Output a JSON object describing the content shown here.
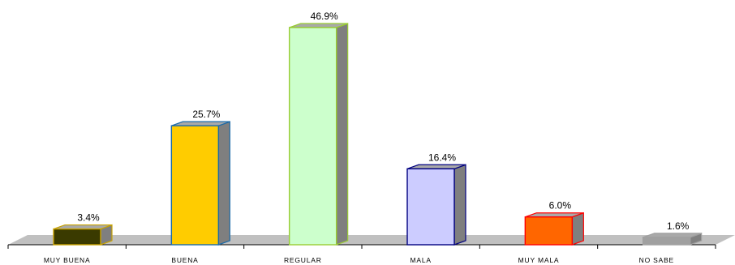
{
  "chart_data": {
    "type": "bar",
    "categories": [
      "MUY BUENA",
      "BUENA",
      "REGULAR",
      "MALA",
      "MUY MALA",
      "NO SABE"
    ],
    "values": [
      3.4,
      25.7,
      46.9,
      16.4,
      6.0,
      1.6
    ],
    "value_labels": [
      "3.4%",
      "25.7%",
      "46.9%",
      "16.4%",
      "6.0%",
      "1.6%"
    ],
    "unit": "%",
    "ylim": [
      0,
      46.9
    ],
    "grid": false,
    "legend": "none",
    "style": "3d",
    "colors": {
      "fronts": [
        "#3a3a00",
        "#ffcc00",
        "#ccffcc",
        "#ccccff",
        "#ff6600",
        "#a0a0a0"
      ],
      "outlines": [
        "#c8a200",
        "#1a6aa8",
        "#99cc33",
        "#000080",
        "#ff0000",
        "#a0a0a0"
      ],
      "side": "#7f7f7f",
      "top": "#a9a9a9",
      "floor": "#c0c0c0"
    }
  }
}
